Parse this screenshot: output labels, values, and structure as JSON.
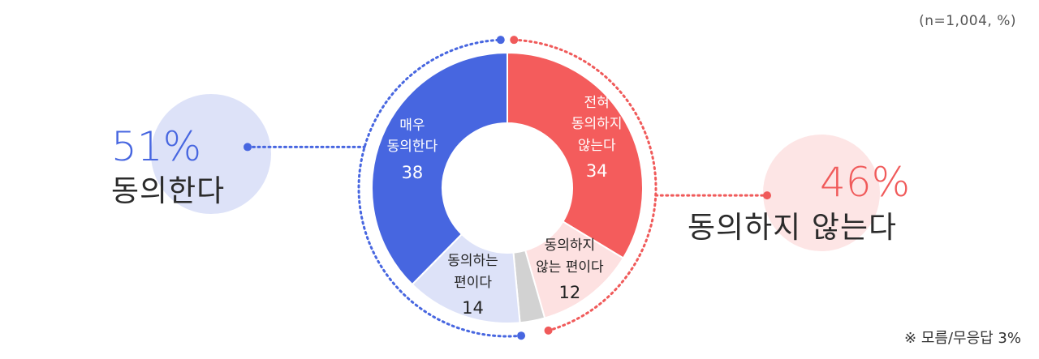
{
  "sample_note": "(n=1,004, %)",
  "footnote": "※ 모름/무응답 3%",
  "summary": {
    "agree": {
      "percent": "51%",
      "label": "동의한다"
    },
    "disagree": {
      "percent": "46%",
      "label": "동의하지 않는다"
    }
  },
  "colors": {
    "strongly_agree": "#4766e0",
    "somewhat_agree": "#dde2f8",
    "dont_know": "#d2d2d2",
    "somewhat_disagree": "#fde1e1",
    "strongly_disagree": "#f45c5c",
    "agree_accent": "#4766e0",
    "disagree_accent": "#f05a5a"
  },
  "chart_data": {
    "type": "pie",
    "donut": true,
    "start": "12 o'clock",
    "direction": "clockwise",
    "slices": [
      {
        "key": "strongly_disagree",
        "label": [
          "전혀",
          "동의하지",
          "않는다"
        ],
        "value": 34
      },
      {
        "key": "somewhat_disagree",
        "label": [
          "동의하지",
          "않는 편이다"
        ],
        "value": 12
      },
      {
        "key": "dont_know",
        "label": [],
        "value": 3
      },
      {
        "key": "somewhat_agree",
        "label": [
          "동의하는",
          "편이다"
        ],
        "value": 14
      },
      {
        "key": "strongly_agree",
        "label": [
          "매우",
          "동의한다"
        ],
        "value": 38
      }
    ]
  }
}
